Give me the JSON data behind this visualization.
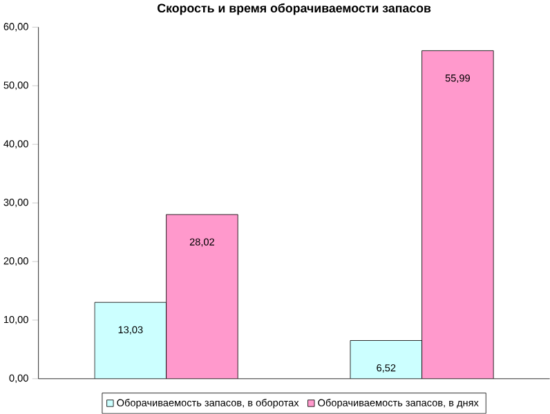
{
  "chart_data": {
    "type": "bar",
    "title": "Скорость и время оборачиваемости запасов",
    "categories": [
      null,
      null
    ],
    "series": [
      {
        "name": "Оборачиваемость запасов, в оборотах",
        "color": "#ccffff",
        "values": [
          13.03,
          6.52
        ],
        "value_labels": [
          "13,03",
          "6,52"
        ]
      },
      {
        "name": "Оборачиваемость запасов, в днях",
        "color": "#ff99cc",
        "values": [
          28.02,
          55.99
        ],
        "value_labels": [
          "28,02",
          "55,99"
        ]
      }
    ],
    "ylim": [
      0,
      60
    ],
    "yticks": [
      {
        "value": 0,
        "label": "0,00"
      },
      {
        "value": 10,
        "label": "10,00"
      },
      {
        "value": 20,
        "label": "20,00"
      },
      {
        "value": 30,
        "label": "30,00"
      },
      {
        "value": 40,
        "label": "40,00"
      },
      {
        "value": 50,
        "label": "50,00"
      },
      {
        "value": 60,
        "label": "60,00"
      }
    ],
    "legend": "bottom"
  }
}
